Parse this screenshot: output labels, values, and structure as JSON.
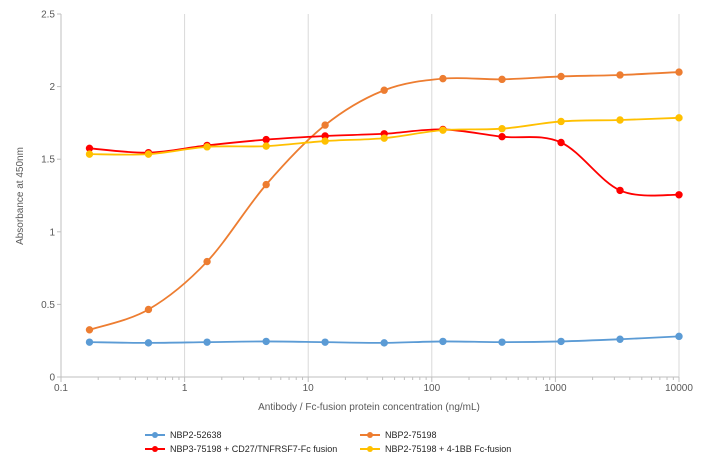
{
  "chart_data": {
    "type": "line",
    "xlabel": "Antibody / Fc-fusion protein concentration (ng/mL)",
    "ylabel": "Absorbance at 450nm",
    "x_scale": "log",
    "xlim": [
      0.1,
      10000
    ],
    "ylim": [
      0,
      2.5
    ],
    "x_ticks": [
      "0.1",
      "1",
      "10",
      "100",
      "1000",
      "10000"
    ],
    "y_ticks": [
      "0",
      "0.5",
      "1",
      "1.5",
      "2",
      "2.5"
    ],
    "grid": "vertical",
    "legend_position": "bottom",
    "series": [
      {
        "name": "NBP2-52638",
        "color": "#5b9bd5",
        "x": [
          0.17,
          0.51,
          1.52,
          4.57,
          13.7,
          41.2,
          123,
          370,
          1111,
          3333,
          10000
        ],
        "y": [
          0.24,
          0.235,
          0.24,
          0.245,
          0.24,
          0.235,
          0.245,
          0.24,
          0.245,
          0.26,
          0.28
        ]
      },
      {
        "name": "NBP2-75198",
        "color": "#ed7d31",
        "x": [
          0.17,
          0.51,
          1.52,
          4.57,
          13.7,
          41.2,
          123,
          370,
          1111,
          3333,
          10000
        ],
        "y": [
          0.325,
          0.465,
          0.795,
          1.325,
          1.735,
          1.975,
          2.055,
          2.05,
          2.07,
          2.08,
          2.1
        ]
      },
      {
        "name": "NBP3-75198 + CD27/TNFRSF7-Fc fusion",
        "color": "#ff0000",
        "x": [
          0.17,
          0.51,
          1.52,
          4.57,
          13.7,
          41.2,
          123,
          370,
          1111,
          3333,
          10000
        ],
        "y": [
          1.575,
          1.545,
          1.595,
          1.635,
          1.66,
          1.675,
          1.705,
          1.655,
          1.615,
          1.285,
          1.255
        ]
      },
      {
        "name": "NBP2-75198 + 4-1BB Fc-fusion",
        "color": "#ffc000",
        "x": [
          0.17,
          0.51,
          1.52,
          4.57,
          13.7,
          41.2,
          123,
          370,
          1111,
          3333,
          10000
        ],
        "y": [
          1.535,
          1.535,
          1.585,
          1.59,
          1.625,
          1.645,
          1.7,
          1.71,
          1.76,
          1.77,
          1.785
        ]
      }
    ]
  }
}
